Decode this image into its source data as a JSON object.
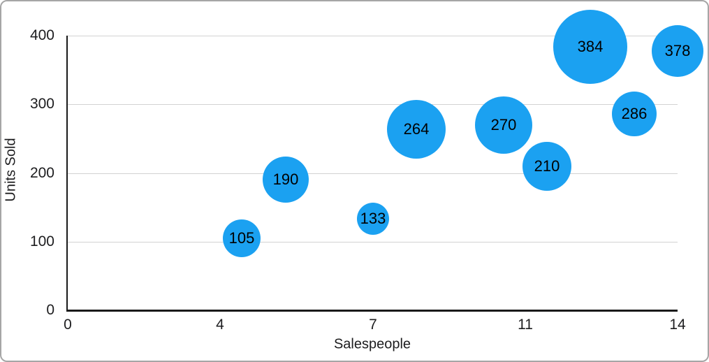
{
  "chart_data": {
    "type": "scatter",
    "subtype": "bubble",
    "title": "",
    "xlabel": "Salespeople",
    "ylabel": "Units Sold",
    "xlim": [
      0,
      14
    ],
    "ylim": [
      0,
      400
    ],
    "x_tick_labels": [
      "0",
      "4",
      "7",
      "11",
      "14"
    ],
    "y_ticks": [
      0,
      100,
      200,
      300,
      400
    ],
    "grid": "horizontal-only",
    "legend": "none",
    "points": [
      {
        "x": 4,
        "y": 105,
        "label": "105",
        "radius_px": 27
      },
      {
        "x": 5,
        "y": 190,
        "label": "190",
        "radius_px": 33
      },
      {
        "x": 7,
        "y": 133,
        "label": "133",
        "radius_px": 23
      },
      {
        "x": 8,
        "y": 264,
        "label": "264",
        "radius_px": 42
      },
      {
        "x": 10,
        "y": 270,
        "label": "270",
        "radius_px": 41
      },
      {
        "x": 11,
        "y": 210,
        "label": "210",
        "radius_px": 35
      },
      {
        "x": 12,
        "y": 384,
        "label": "384",
        "radius_px": 53
      },
      {
        "x": 13,
        "y": 286,
        "label": "286",
        "radius_px": 32
      },
      {
        "x": 14,
        "y": 378,
        "label": "378",
        "radius_px": 37
      }
    ],
    "colors": {
      "bubble": "#1BA1F1",
      "bubble_label": "#000000",
      "grid": "#d2d2d2",
      "axis": "#1a1a1a",
      "tick_text": "#1d1d1f",
      "frame_border": "#a6a6a6",
      "background": "#ffffff"
    }
  }
}
